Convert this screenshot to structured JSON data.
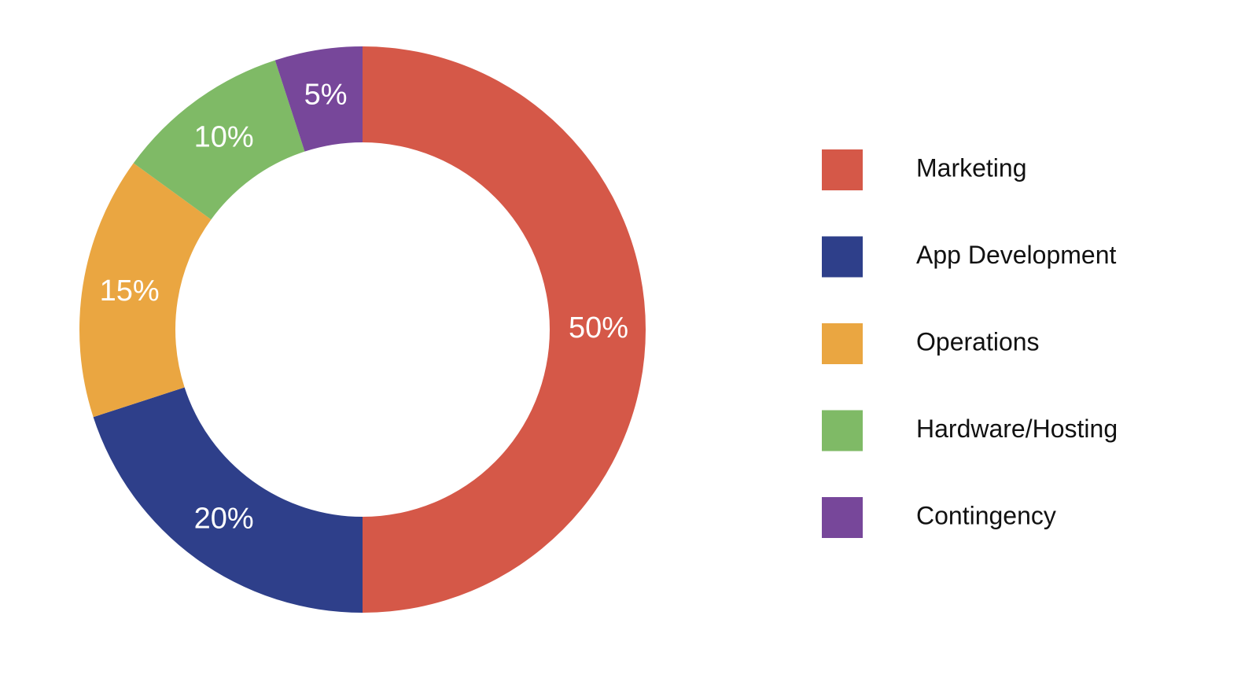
{
  "chart_data": {
    "type": "donut",
    "categories": [
      "Marketing",
      "App Development",
      "Operations",
      "Hardware/Hosting",
      "Contingency"
    ],
    "values": [
      50,
      20,
      15,
      10,
      5
    ],
    "value_labels": [
      "50%",
      "20%",
      "15%",
      "10%",
      "5%"
    ],
    "colors": [
      "#d55848",
      "#2e3f8a",
      "#eaa641",
      "#7fba66",
      "#77479a"
    ],
    "legend": "right"
  }
}
